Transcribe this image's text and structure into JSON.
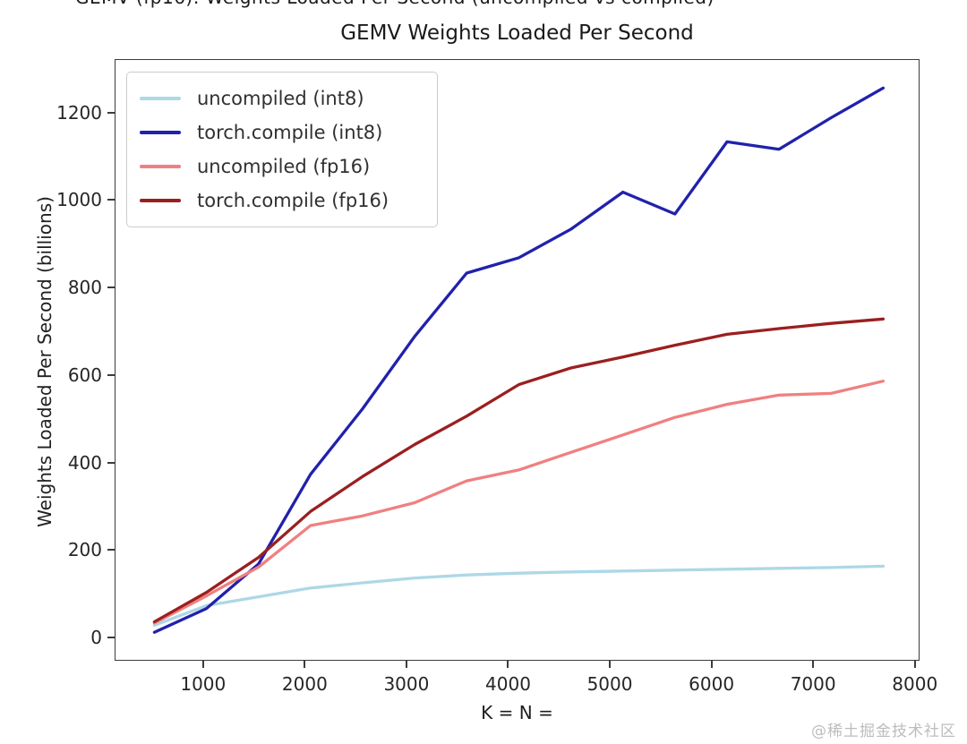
{
  "page": {
    "top_clipped_text": "GEMV (fp16): Weights Loaded Per Second (uncompiled vs compiled)",
    "watermark": "@稀土掘金技术社区"
  },
  "chart_data": {
    "type": "line",
    "title": "GEMV Weights Loaded Per Second",
    "xlabel": "K = N =",
    "ylabel": "Weights Loaded Per Second (billions)",
    "xlim": [
      130,
      8020
    ],
    "ylim": [
      -47,
      1322
    ],
    "xticks": [
      1000,
      2000,
      3000,
      4000,
      5000,
      6000,
      7000,
      8000
    ],
    "yticks": [
      0,
      200,
      400,
      600,
      800,
      1000,
      1200
    ],
    "grid": false,
    "legend_position": "upper-left",
    "x": [
      512,
      1024,
      1536,
      2048,
      2560,
      3072,
      3584,
      4096,
      4608,
      5120,
      5632,
      6144,
      6656,
      7168,
      7680
    ],
    "series": [
      {
        "name": "uncompiled (int8)",
        "color": "#add8e6",
        "values": [
          30,
          75,
          95,
          115,
          127,
          138,
          145,
          149,
          152,
          154,
          156,
          158,
          160,
          162,
          165
        ]
      },
      {
        "name": "torch.compile (int8)",
        "color": "#2121ad",
        "values": [
          14,
          68,
          170,
          375,
          525,
          690,
          835,
          870,
          935,
          1020,
          970,
          1135,
          1118,
          1190,
          1258
        ]
      },
      {
        "name": "uncompiled (fp16)",
        "color": "#f08080",
        "values": [
          35,
          97,
          163,
          258,
          280,
          310,
          360,
          385,
          425,
          465,
          505,
          535,
          556,
          560,
          588
        ]
      },
      {
        "name": "torch.compile (fp16)",
        "color": "#9b1f1f",
        "values": [
          38,
          105,
          185,
          290,
          370,
          443,
          508,
          580,
          618,
          643,
          670,
          695,
          708,
          720,
          730
        ]
      }
    ]
  }
}
